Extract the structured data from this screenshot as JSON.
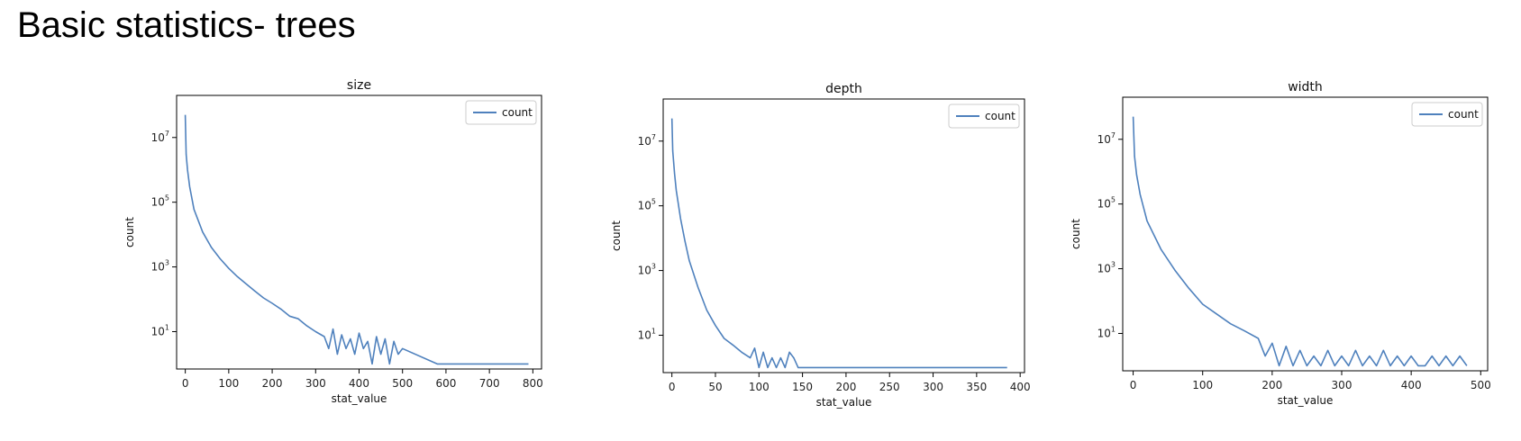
{
  "slide": {
    "title": "Basic statistics- trees"
  },
  "chart_data": [
    {
      "type": "line",
      "title": "size",
      "xlabel": "stat_value",
      "ylabel": "count",
      "y_scale": "log",
      "xlim": [
        -20,
        820
      ],
      "ylim": [
        0.7,
        200000000
      ],
      "x_ticks": [
        0,
        100,
        200,
        300,
        400,
        500,
        600,
        700,
        800
      ],
      "y_ticks": [
        {
          "value": 10,
          "base": "10",
          "exp": "1"
        },
        {
          "value": 1000,
          "base": "10",
          "exp": "3"
        },
        {
          "value": 100000,
          "base": "10",
          "exp": "5"
        },
        {
          "value": 10000000,
          "base": "10",
          "exp": "7"
        }
      ],
      "legend": {
        "labels": [
          "count"
        ],
        "position": "upper right"
      },
      "color": "#4f81bd",
      "series": [
        {
          "name": "count",
          "x": [
            0,
            2,
            5,
            10,
            20,
            40,
            60,
            80,
            100,
            120,
            140,
            160,
            180,
            200,
            220,
            240,
            260,
            280,
            300,
            320,
            330,
            340,
            350,
            360,
            370,
            380,
            390,
            400,
            410,
            420,
            430,
            440,
            450,
            460,
            470,
            480,
            490,
            500,
            580,
            790
          ],
          "y": [
            50000000,
            3000000,
            1000000,
            300000,
            60000,
            12000,
            4000,
            1800,
            900,
            500,
            300,
            180,
            110,
            75,
            50,
            30,
            25,
            15,
            10,
            7,
            3,
            12,
            2,
            8,
            3,
            6,
            2,
            9,
            3,
            5,
            1,
            7,
            2,
            6,
            1,
            5,
            2,
            3,
            1,
            1
          ]
        }
      ]
    },
    {
      "type": "line",
      "title": "depth",
      "xlabel": "stat_value",
      "ylabel": "count",
      "y_scale": "log",
      "xlim": [
        -10,
        405
      ],
      "ylim": [
        0.7,
        200000000
      ],
      "x_ticks": [
        0,
        50,
        100,
        150,
        200,
        250,
        300,
        350,
        400
      ],
      "y_ticks": [
        {
          "value": 10,
          "base": "10",
          "exp": "1"
        },
        {
          "value": 1000,
          "base": "10",
          "exp": "3"
        },
        {
          "value": 100000,
          "base": "10",
          "exp": "5"
        },
        {
          "value": 10000000,
          "base": "10",
          "exp": "7"
        }
      ],
      "legend": {
        "labels": [
          "count"
        ],
        "position": "upper right"
      },
      "color": "#4f81bd",
      "series": [
        {
          "name": "count",
          "x": [
            0,
            1,
            3,
            5,
            10,
            15,
            20,
            30,
            40,
            50,
            60,
            70,
            80,
            90,
            95,
            100,
            105,
            110,
            115,
            120,
            125,
            130,
            135,
            140,
            145,
            385
          ],
          "y": [
            50000000,
            5000000,
            1000000,
            300000,
            40000,
            8000,
            2000,
            300,
            60,
            20,
            8,
            5,
            3,
            2,
            4,
            1,
            3,
            1,
            2,
            1,
            2,
            1,
            3,
            2,
            1,
            1
          ]
        }
      ]
    },
    {
      "type": "line",
      "title": "width",
      "xlabel": "stat_value",
      "ylabel": "count",
      "y_scale": "log",
      "xlim": [
        -15,
        510
      ],
      "ylim": [
        0.7,
        200000000
      ],
      "x_ticks": [
        0,
        100,
        200,
        300,
        400,
        500
      ],
      "y_ticks": [
        {
          "value": 10,
          "base": "10",
          "exp": "1"
        },
        {
          "value": 1000,
          "base": "10",
          "exp": "3"
        },
        {
          "value": 100000,
          "base": "10",
          "exp": "5"
        },
        {
          "value": 10000000,
          "base": "10",
          "exp": "7"
        }
      ],
      "legend": {
        "labels": [
          "count"
        ],
        "position": "upper right"
      },
      "color": "#4f81bd",
      "series": [
        {
          "name": "count",
          "x": [
            0,
            2,
            5,
            10,
            20,
            40,
            60,
            80,
            100,
            120,
            140,
            160,
            180,
            190,
            200,
            210,
            220,
            230,
            240,
            250,
            260,
            270,
            280,
            290,
            300,
            310,
            320,
            330,
            340,
            350,
            360,
            370,
            380,
            390,
            400,
            410,
            420,
            430,
            440,
            450,
            460,
            470,
            480
          ],
          "y": [
            50000000,
            3000000,
            800000,
            200000,
            30000,
            4000,
            900,
            250,
            80,
            40,
            20,
            12,
            7,
            2,
            5,
            1,
            4,
            1,
            3,
            1,
            2,
            1,
            3,
            1,
            2,
            1,
            3,
            1,
            2,
            1,
            3,
            1,
            2,
            1,
            2,
            1,
            1,
            2,
            1,
            2,
            1,
            2,
            1
          ]
        }
      ]
    }
  ]
}
